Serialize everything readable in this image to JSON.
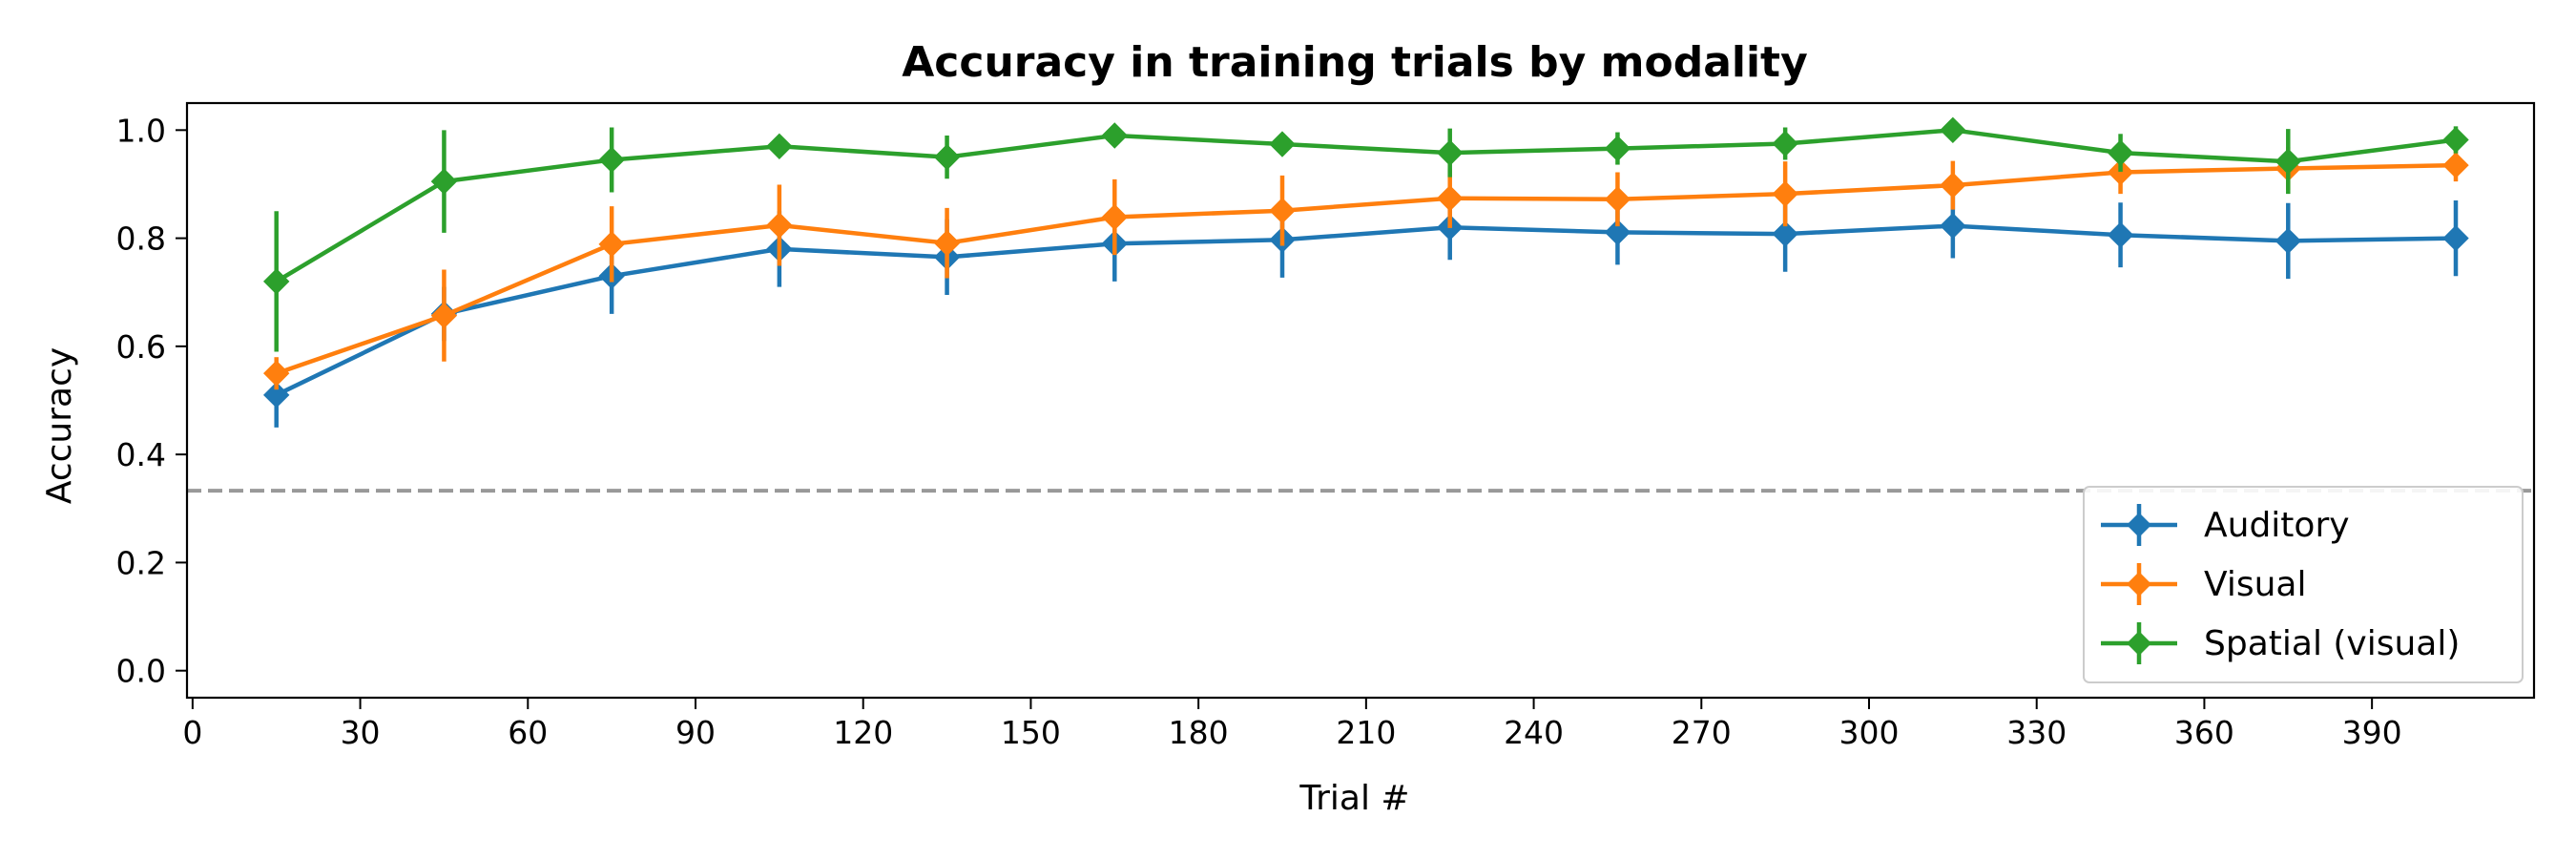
{
  "chart_data": {
    "type": "line",
    "title": "Accuracy in training trials by modality",
    "xlabel": "Trial #",
    "ylabel": "Accuracy",
    "xlim": [
      -1,
      419
    ],
    "ylim": [
      -0.05,
      1.05
    ],
    "xticks": [
      0,
      30,
      60,
      90,
      120,
      150,
      180,
      210,
      240,
      270,
      300,
      330,
      360,
      390
    ],
    "yticks": [
      0.0,
      0.2,
      0.4,
      0.6,
      0.8,
      1.0
    ],
    "x": [
      15,
      45,
      75,
      105,
      135,
      165,
      195,
      225,
      255,
      285,
      315,
      345,
      375,
      405
    ],
    "chance_line": 0.333,
    "grid": false,
    "legend_position": "lower-right",
    "series": [
      {
        "name": "Auditory",
        "color": "#1f77b4",
        "marker": "diamond",
        "values": [
          0.51,
          0.66,
          0.73,
          0.78,
          0.765,
          0.79,
          0.797,
          0.82,
          0.811,
          0.808,
          0.823,
          0.806,
          0.795,
          0.8
        ],
        "errors": [
          0.06,
          0.05,
          0.07,
          0.07,
          0.07,
          0.07,
          0.07,
          0.06,
          0.06,
          0.07,
          0.06,
          0.06,
          0.07,
          0.07
        ]
      },
      {
        "name": "Visual",
        "color": "#ff7f0e",
        "marker": "diamond",
        "values": [
          0.55,
          0.657,
          0.789,
          0.824,
          0.791,
          0.839,
          0.851,
          0.874,
          0.872,
          0.882,
          0.898,
          0.922,
          0.929,
          0.935
        ],
        "errors": [
          0.03,
          0.085,
          0.07,
          0.075,
          0.065,
          0.07,
          0.065,
          0.055,
          0.05,
          0.06,
          0.045,
          0.04,
          0.04,
          0.03
        ]
      },
      {
        "name": "Spatial (visual)",
        "color": "#2ca02c",
        "marker": "diamond",
        "values": [
          0.72,
          0.905,
          0.945,
          0.97,
          0.95,
          0.99,
          0.974,
          0.958,
          0.966,
          0.975,
          1.0,
          0.958,
          0.942,
          0.982
        ],
        "errors": [
          0.13,
          0.095,
          0.06,
          0.02,
          0.04,
          0.02,
          0.02,
          0.045,
          0.03,
          0.03,
          0.02,
          0.035,
          0.06,
          0.025
        ]
      }
    ]
  }
}
